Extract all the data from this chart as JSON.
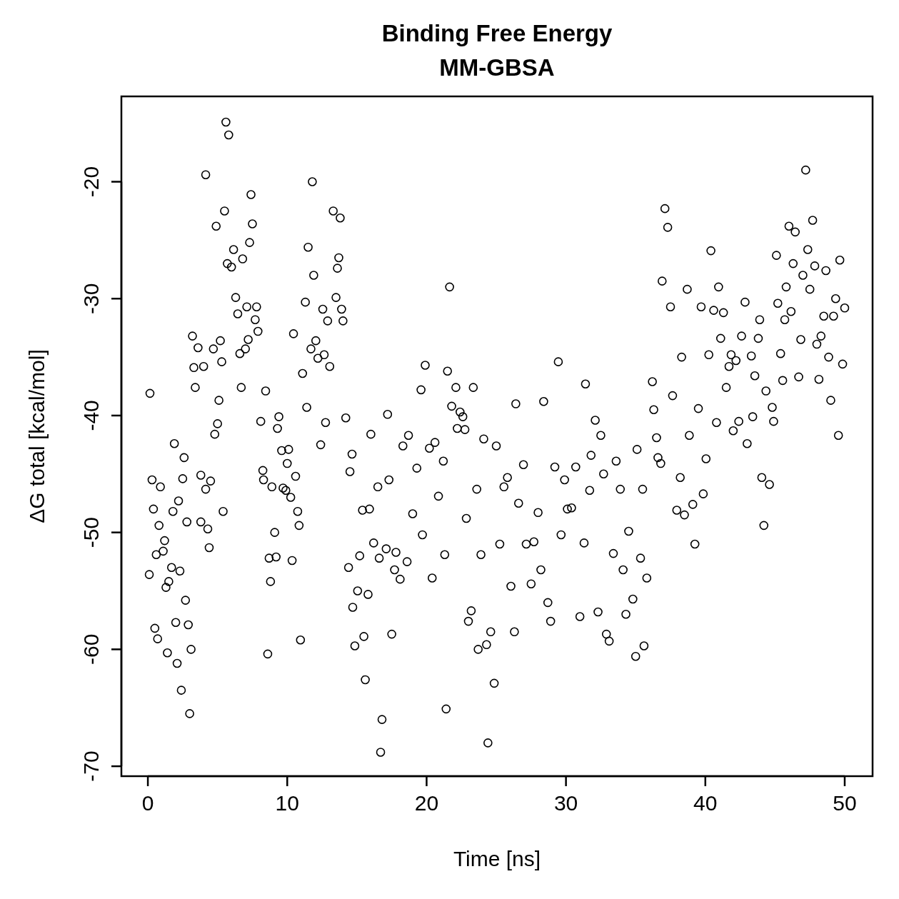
{
  "chart_data": {
    "type": "scatter",
    "title": "Binding Free Energy",
    "subtitle": "MM-GBSA",
    "xlabel": "Time [ns]",
    "ylabel": "ΔG total [kcal/mol]",
    "xlim": [
      -1.9,
      52
    ],
    "ylim": [
      -70.85,
      -12.7
    ],
    "xticks": [
      0,
      10,
      20,
      30,
      40,
      50
    ],
    "yticks": [
      -70,
      -60,
      -50,
      -40,
      -30,
      -20
    ],
    "marker": "circle",
    "grid": false,
    "series": [
      {
        "color": "#000000",
        "x": [
          0.1,
          0.15,
          0.3,
          0.4,
          0.5,
          0.6,
          0.7,
          0.8,
          0.9,
          1.1,
          1.2,
          1.3,
          1.4,
          1.5,
          1.7,
          1.8,
          1.9,
          2.0,
          2.1,
          2.2,
          2.3,
          2.4,
          2.5,
          2.6,
          2.7,
          2.8,
          2.9,
          3.0,
          3.1,
          3.2,
          3.3,
          3.4,
          3.6,
          3.8,
          3.8,
          4.0,
          4.15,
          4.15,
          4.3,
          4.4,
          4.5,
          4.7,
          4.8,
          5.0,
          4.9,
          5.1,
          5.2,
          5.3,
          5.4,
          5.5,
          5.6,
          5.7,
          5.8,
          6.0,
          6.15,
          6.3,
          6.45,
          6.6,
          6.7,
          6.8,
          7.0,
          7.1,
          7.2,
          7.3,
          7.4,
          7.5,
          7.7,
          7.8,
          7.9,
          8.1,
          8.25,
          8.3,
          8.45,
          8.6,
          8.7,
          8.8,
          8.9,
          9.1,
          9.2,
          9.3,
          9.4,
          9.6,
          9.7,
          9.9,
          10.0,
          10.1,
          10.25,
          10.35,
          10.45,
          10.6,
          10.75,
          10.85,
          10.95,
          11.1,
          11.3,
          11.4,
          11.5,
          11.7,
          11.8,
          11.9,
          12.05,
          12.2,
          12.4,
          12.55,
          12.65,
          12.75,
          12.9,
          13.05,
          13.3,
          13.5,
          13.6,
          13.7,
          13.8,
          13.9,
          14.0,
          14.2,
          14.4,
          14.5,
          14.65,
          14.7,
          14.85,
          15.05,
          15.2,
          15.4,
          15.5,
          15.6,
          15.8,
          15.9,
          16.0,
          16.2,
          16.5,
          16.6,
          16.7,
          16.8,
          17.1,
          17.2,
          17.3,
          17.5,
          17.7,
          17.8,
          18.1,
          18.3,
          18.6,
          18.7,
          19.0,
          19.3,
          19.6,
          19.7,
          19.9,
          20.2,
          20.4,
          20.6,
          20.85,
          21.2,
          21.3,
          21.4,
          21.5,
          21.65,
          21.8,
          22.1,
          22.2,
          22.4,
          22.6,
          22.75,
          22.85,
          23.0,
          23.2,
          23.35,
          23.6,
          23.7,
          23.9,
          24.1,
          24.3,
          24.4,
          24.6,
          24.85,
          25.0,
          25.25,
          25.55,
          25.8,
          26.05,
          26.3,
          26.4,
          26.6,
          26.95,
          27.15,
          27.5,
          27.7,
          28.0,
          28.2,
          28.4,
          28.7,
          28.9,
          29.2,
          29.45,
          29.65,
          29.9,
          30.1,
          30.4,
          30.7,
          31.0,
          31.3,
          31.4,
          31.7,
          31.8,
          32.1,
          32.3,
          32.5,
          32.7,
          32.9,
          33.1,
          33.4,
          33.6,
          33.9,
          34.1,
          34.3,
          34.5,
          34.8,
          35.0,
          35.1,
          35.35,
          35.5,
          35.6,
          35.8,
          36.2,
          36.3,
          36.5,
          36.6,
          36.8,
          36.9,
          37.1,
          37.3,
          37.5,
          37.65,
          37.95,
          38.2,
          38.3,
          38.5,
          38.7,
          38.85,
          39.1,
          39.25,
          39.5,
          39.7,
          39.85,
          40.05,
          40.25,
          40.4,
          40.6,
          40.8,
          40.95,
          41.1,
          41.3,
          41.5,
          41.7,
          41.85,
          42.0,
          42.2,
          42.4,
          42.6,
          42.85,
          43.0,
          43.3,
          43.4,
          43.55,
          43.8,
          43.9,
          44.05,
          44.2,
          44.35,
          44.6,
          44.8,
          44.9,
          45.1,
          45.2,
          45.4,
          45.55,
          45.7,
          45.8,
          46.0,
          46.15,
          46.3,
          46.45,
          46.7,
          46.85,
          47.0,
          47.2,
          47.35,
          47.5,
          47.7,
          47.85,
          48.0,
          48.15,
          48.3,
          48.5,
          48.65,
          48.85,
          49.0,
          49.2,
          49.35,
          49.55,
          49.65,
          49.85,
          50.0
        ],
        "values": [
          -53.6,
          -38.1,
          -45.5,
          -48.0,
          -58.2,
          -51.9,
          -59.1,
          -49.4,
          -46.1,
          -51.6,
          -50.7,
          -54.7,
          -60.3,
          -54.2,
          -53.0,
          -48.2,
          -42.4,
          -57.7,
          -61.2,
          -47.3,
          -53.3,
          -63.5,
          -45.4,
          -43.6,
          -55.8,
          -49.1,
          -57.9,
          -65.5,
          -60.0,
          -33.2,
          -35.9,
          -37.6,
          -34.2,
          -49.1,
          -45.1,
          -35.8,
          -19.4,
          -46.3,
          -49.7,
          -51.3,
          -45.6,
          -34.3,
          -41.6,
          -40.7,
          -23.8,
          -38.7,
          -33.6,
          -35.4,
          -48.2,
          -22.5,
          -14.9,
          -27.0,
          -16.0,
          -27.3,
          -25.8,
          -29.9,
          -31.3,
          -34.7,
          -37.6,
          -26.6,
          -34.3,
          -30.7,
          -33.5,
          -25.2,
          -21.1,
          -23.6,
          -31.8,
          -30.7,
          -32.8,
          -40.5,
          -44.7,
          -45.5,
          -37.9,
          -60.4,
          -52.2,
          -54.2,
          -46.1,
          -50.0,
          -52.1,
          -41.1,
          -40.1,
          -43.0,
          -46.2,
          -46.4,
          -44.1,
          -42.9,
          -47.0,
          -52.4,
          -33.0,
          -45.2,
          -48.2,
          -49.4,
          -59.2,
          -36.4,
          -30.3,
          -39.3,
          -25.6,
          -34.3,
          -20.0,
          -28.0,
          -33.6,
          -35.1,
          -42.5,
          -30.9,
          -34.8,
          -40.6,
          -31.9,
          -35.8,
          -22.5,
          -29.9,
          -27.4,
          -26.5,
          -23.1,
          -30.9,
          -31.9,
          -40.2,
          -53.0,
          -44.8,
          -43.3,
          -56.4,
          -59.7,
          -55.0,
          -52.0,
          -48.1,
          -58.9,
          -62.6,
          -55.3,
          -48.0,
          -41.6,
          -50.9,
          -46.1,
          -52.2,
          -68.8,
          -66.0,
          -51.4,
          -39.9,
          -45.5,
          -58.7,
          -53.2,
          -51.7,
          -54.0,
          -42.6,
          -52.5,
          -41.7,
          -48.4,
          -44.5,
          -37.8,
          -50.2,
          -35.7,
          -42.8,
          -53.9,
          -42.3,
          -46.9,
          -43.9,
          -51.9,
          -65.1,
          -36.2,
          -29.0,
          -39.2,
          -37.6,
          -41.1,
          -39.7,
          -40.1,
          -41.2,
          -48.8,
          -57.6,
          -56.7,
          -37.6,
          -46.3,
          -60.0,
          -51.9,
          -42.0,
          -59.6,
          -68.0,
          -58.5,
          -62.9,
          -42.6,
          -51.0,
          -46.1,
          -45.3,
          -54.6,
          -58.5,
          -39.0,
          -47.5,
          -44.2,
          -51.0,
          -54.4,
          -50.8,
          -48.3,
          -53.2,
          -38.8,
          -56.0,
          -57.6,
          -44.4,
          -35.4,
          -50.2,
          -45.5,
          -48.0,
          -47.9,
          -44.4,
          -57.2,
          -50.9,
          -37.3,
          -46.4,
          -43.4,
          -40.4,
          -56.8,
          -41.7,
          -45.0,
          -58.7,
          -59.3,
          -51.8,
          -43.9,
          -46.3,
          -53.2,
          -57.0,
          -49.9,
          -55.7,
          -60.6,
          -42.9,
          -52.2,
          -46.3,
          -59.7,
          -53.9,
          -37.1,
          -39.5,
          -41.9,
          -43.6,
          -44.1,
          -28.5,
          -22.3,
          -23.9,
          -30.7,
          -38.3,
          -48.1,
          -45.3,
          -35.0,
          -48.5,
          -29.2,
          -41.7,
          -47.6,
          -51.0,
          -39.4,
          -30.7,
          -46.7,
          -43.7,
          -34.8,
          -25.9,
          -31.0,
          -40.6,
          -29.0,
          -33.4,
          -31.2,
          -37.6,
          -35.8,
          -34.8,
          -41.3,
          -35.3,
          -40.5,
          -33.2,
          -30.3,
          -42.4,
          -34.9,
          -40.1,
          -36.6,
          -33.4,
          -31.8,
          -45.3,
          -49.4,
          -37.9,
          -45.9,
          -39.3,
          -40.5,
          -26.3,
          -30.4,
          -34.7,
          -37.0,
          -31.8,
          -29.0,
          -23.8,
          -31.1,
          -27.0,
          -24.3,
          -36.7,
          -33.5,
          -28.0,
          -19.0,
          -25.8,
          -29.2,
          -23.3,
          -27.2,
          -33.9,
          -36.9,
          -33.2,
          -31.5,
          -27.6,
          -35.0,
          -38.7,
          -31.5,
          -30.0,
          -41.7,
          -26.7,
          -35.6,
          -30.8
        ]
      }
    ]
  }
}
